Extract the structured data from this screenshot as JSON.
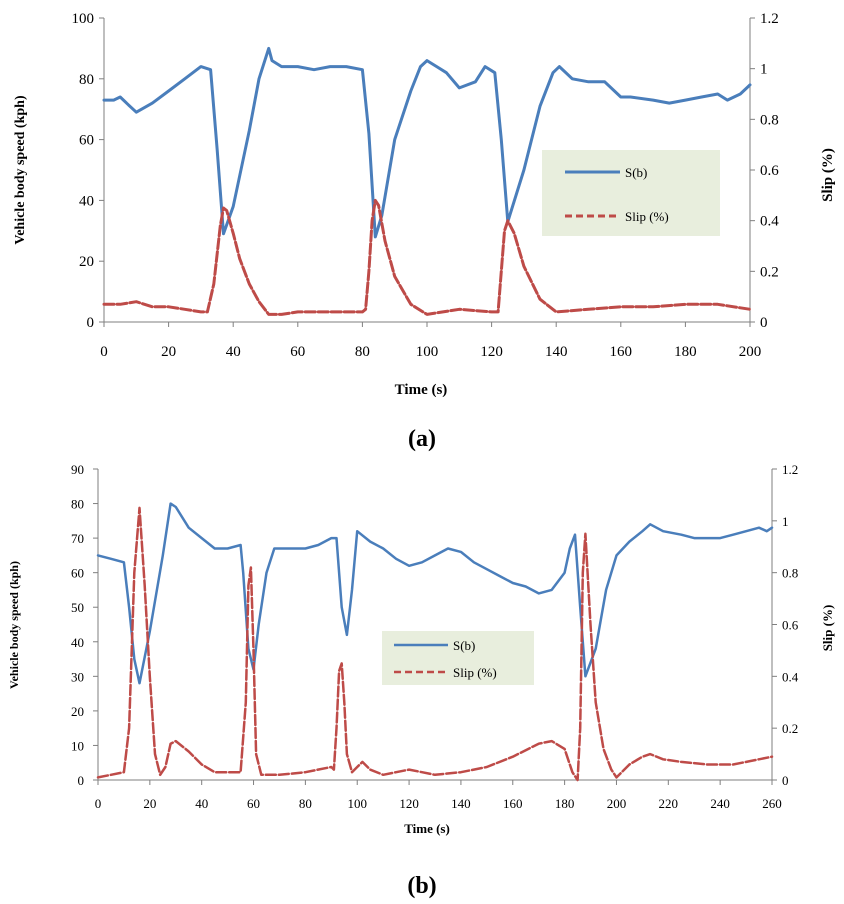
{
  "colors": {
    "speed": "#4a7ebb",
    "slip": "#be4b48",
    "legend_bg": "#e8eedd",
    "axis": "#7f7f7f"
  },
  "chart_data": [
    {
      "type": "line",
      "panel_label": "(a)",
      "xlabel": "Time (s)",
      "ylabel": "Vehicle body speed (kph)",
      "y2label": "Slip (%)",
      "xlim": [
        0,
        200
      ],
      "ylim": [
        0,
        100
      ],
      "y2lim": [
        0,
        1.2
      ],
      "xticks": [
        0,
        20,
        40,
        60,
        80,
        100,
        120,
        140,
        160,
        180,
        200
      ],
      "yticks": [
        0,
        20,
        40,
        60,
        80,
        100
      ],
      "y2ticks": [
        "0",
        "0.2",
        "0.4",
        "0.6",
        "0.8",
        "1",
        "1.2"
      ],
      "legend": {
        "position": "right",
        "entries": [
          "S(b)",
          "Slip (%)"
        ]
      },
      "series": [
        {
          "name": "S(b)",
          "axis": "left",
          "style": "solid",
          "x": [
            0,
            3,
            5,
            8,
            10,
            15,
            20,
            25,
            30,
            33,
            35,
            37,
            40,
            45,
            48,
            51,
            52,
            55,
            60,
            65,
            70,
            75,
            80,
            82,
            84,
            86,
            90,
            95,
            98,
            100,
            103,
            106,
            110,
            115,
            118,
            121,
            123,
            125,
            130,
            135,
            139,
            141,
            145,
            150,
            155,
            160,
            163,
            170,
            175,
            180,
            185,
            190,
            193,
            197,
            200
          ],
          "values": [
            73,
            73,
            74,
            71,
            69,
            72,
            76,
            80,
            84,
            83,
            57,
            29,
            38,
            63,
            80,
            90,
            86,
            84,
            84,
            83,
            84,
            84,
            83,
            62,
            28,
            35,
            60,
            76,
            84,
            86,
            84,
            82,
            77,
            79,
            84,
            82,
            60,
            33,
            50,
            71,
            82,
            84,
            80,
            79,
            79,
            74,
            74,
            73,
            72,
            73,
            74,
            75,
            73,
            75,
            78
          ]
        },
        {
          "name": "Slip (%)",
          "axis": "right",
          "style": "dashed",
          "x": [
            0,
            5,
            10,
            15,
            20,
            25,
            30,
            32,
            34,
            36,
            37,
            38,
            40,
            42,
            45,
            48,
            51,
            55,
            60,
            70,
            80,
            81,
            82,
            83,
            84,
            85,
            87,
            90,
            95,
            100,
            110,
            120,
            122,
            123,
            124,
            125,
            127,
            130,
            135,
            140,
            150,
            160,
            170,
            180,
            190,
            200
          ],
          "values": [
            0.07,
            0.07,
            0.08,
            0.06,
            0.06,
            0.05,
            0.04,
            0.04,
            0.15,
            0.38,
            0.45,
            0.44,
            0.35,
            0.25,
            0.15,
            0.08,
            0.03,
            0.03,
            0.04,
            0.04,
            0.04,
            0.05,
            0.2,
            0.4,
            0.48,
            0.46,
            0.32,
            0.18,
            0.07,
            0.03,
            0.05,
            0.04,
            0.04,
            0.2,
            0.36,
            0.4,
            0.35,
            0.22,
            0.09,
            0.04,
            0.05,
            0.06,
            0.06,
            0.07,
            0.07,
            0.05
          ]
        }
      ]
    },
    {
      "type": "line",
      "panel_label": "(b)",
      "xlabel": "Time (s)",
      "ylabel": "Vehicle body speed (kph)",
      "y2label": "Slip (%)",
      "xlim": [
        0,
        260
      ],
      "ylim": [
        0,
        90
      ],
      "y2lim": [
        0,
        1.2
      ],
      "xticks": [
        0,
        20,
        40,
        60,
        80,
        100,
        120,
        140,
        160,
        180,
        200,
        220,
        240,
        260
      ],
      "yticks": [
        0,
        10,
        20,
        30,
        40,
        50,
        60,
        70,
        80,
        90
      ],
      "y2ticks": [
        "0",
        "0.2",
        "0.4",
        "0.6",
        "0.8",
        "1",
        "1.2"
      ],
      "legend": {
        "position": "center-right",
        "entries": [
          "S(b)",
          "Slip (%)"
        ]
      },
      "series": [
        {
          "name": "S(b)",
          "axis": "left",
          "style": "solid",
          "x": [
            0,
            5,
            10,
            12,
            14,
            16,
            20,
            25,
            28,
            30,
            35,
            40,
            45,
            50,
            55,
            56,
            58,
            60,
            62,
            65,
            68,
            72,
            80,
            85,
            90,
            92,
            94,
            96,
            98,
            100,
            105,
            110,
            115,
            120,
            125,
            130,
            135,
            140,
            145,
            150,
            155,
            160,
            165,
            170,
            175,
            180,
            182,
            184,
            186,
            188,
            192,
            196,
            200,
            205,
            210,
            213,
            218,
            225,
            230,
            240,
            245,
            250,
            255,
            258,
            260
          ],
          "values": [
            65,
            64,
            63,
            50,
            35,
            28,
            43,
            65,
            80,
            79,
            73,
            70,
            67,
            67,
            68,
            60,
            38,
            32,
            45,
            60,
            67,
            67,
            67,
            68,
            70,
            70,
            50,
            42,
            55,
            72,
            69,
            67,
            64,
            62,
            63,
            65,
            67,
            66,
            63,
            61,
            59,
            57,
            56,
            54,
            55,
            60,
            67,
            71,
            50,
            30,
            38,
            55,
            65,
            69,
            72,
            74,
            72,
            71,
            70,
            70,
            71,
            72,
            73,
            72,
            73
          ]
        },
        {
          "name": "Slip (%)",
          "axis": "right",
          "style": "dashed",
          "x": [
            0,
            5,
            10,
            12,
            14,
            16,
            18,
            20,
            22,
            24,
            26,
            28,
            30,
            35,
            40,
            45,
            50,
            55,
            57,
            58,
            59,
            60,
            61,
            63,
            66,
            70,
            80,
            90,
            91,
            92,
            93,
            94,
            95,
            96,
            98,
            100,
            102,
            105,
            110,
            115,
            120,
            125,
            130,
            140,
            150,
            160,
            170,
            175,
            180,
            183,
            185,
            186,
            187,
            188,
            190,
            192,
            195,
            198,
            200,
            205,
            210,
            213,
            218,
            225,
            235,
            245,
            255,
            260
          ],
          "values": [
            0.01,
            0.02,
            0.03,
            0.2,
            0.8,
            1.05,
            0.75,
            0.4,
            0.1,
            0.02,
            0.05,
            0.14,
            0.15,
            0.11,
            0.06,
            0.03,
            0.03,
            0.03,
            0.3,
            0.75,
            0.82,
            0.5,
            0.1,
            0.02,
            0.02,
            0.02,
            0.03,
            0.05,
            0.04,
            0.2,
            0.42,
            0.45,
            0.3,
            0.1,
            0.03,
            0.05,
            0.07,
            0.04,
            0.02,
            0.03,
            0.04,
            0.03,
            0.02,
            0.03,
            0.05,
            0.09,
            0.14,
            0.15,
            0.12,
            0.03,
            0.0,
            0.2,
            0.8,
            0.95,
            0.6,
            0.3,
            0.12,
            0.04,
            0.01,
            0.06,
            0.09,
            0.1,
            0.08,
            0.07,
            0.06,
            0.06,
            0.08,
            0.09
          ]
        }
      ]
    }
  ]
}
